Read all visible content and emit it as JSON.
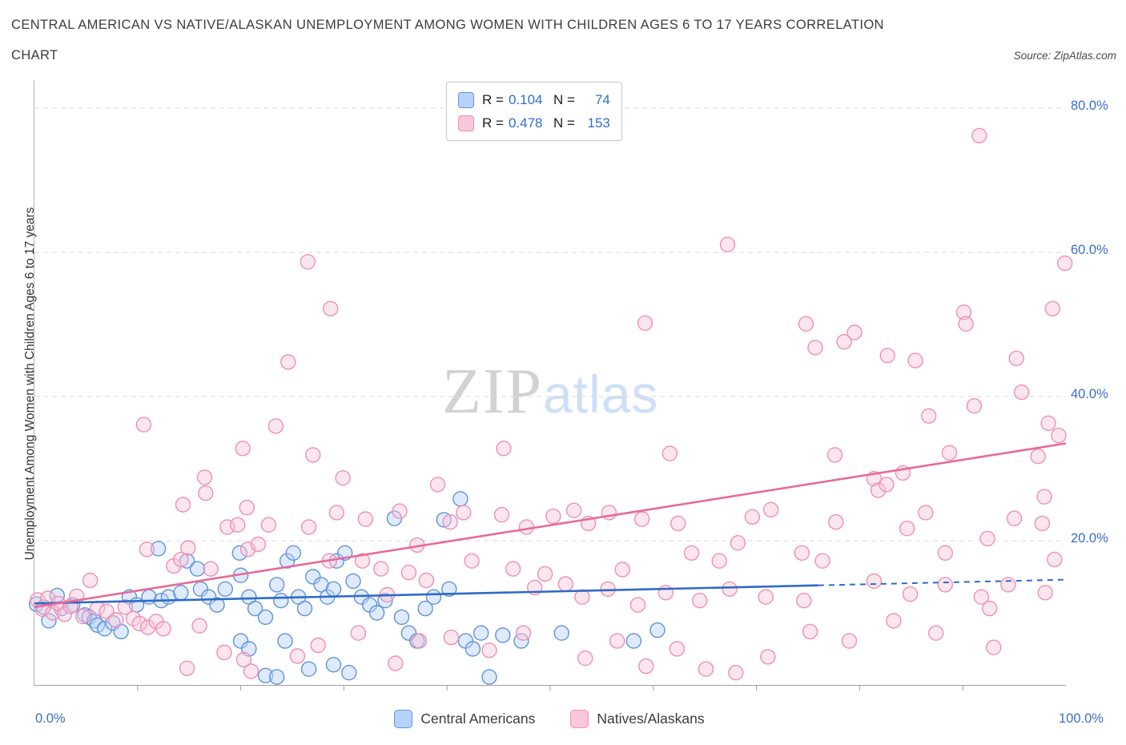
{
  "header": {
    "title_line1": "CENTRAL AMERICAN VS NATIVE/ALASKAN UNEMPLOYMENT AMONG WOMEN WITH CHILDREN AGES 6 TO 17 YEARS CORRELATION",
    "title_line2": "CHART",
    "source": "Source: ZipAtlas.com"
  },
  "legend_box": {
    "series": [
      {
        "r_label": "R =",
        "r": "0.104",
        "n_label": "N =",
        "n": "74"
      },
      {
        "r_label": "R =",
        "r": "0.478",
        "n_label": "N =",
        "n": "153"
      }
    ]
  },
  "watermark": {
    "part1": "ZIP",
    "part2": "atlas"
  },
  "axes": {
    "y_label": "Unemployment Among Women with Children Ages 6 to 17 years",
    "y_ticks": [
      "80.0%",
      "60.0%",
      "40.0%",
      "20.0%"
    ],
    "x_min_label": "0.0%",
    "x_max_label": "100.0%"
  },
  "bottom_legend": {
    "series1": "Central Americans",
    "series2": "Natives/Alaskans"
  },
  "colors": {
    "accent_blue": "#2f6fce",
    "tick_label_blue": "#3a6fc9",
    "central_fill": "#b7d3f9",
    "central_stroke": "#5f92dd",
    "central_line": "#2e6bc6",
    "native_fill": "#f9c8da",
    "native_stroke": "#ee8fb5",
    "native_line": "#e76b97",
    "grid": "#d9d9d9",
    "axis": "#9e9e9e"
  },
  "chart_data": {
    "type": "scatter",
    "title": "Central American vs Native/Alaskan Unemployment Among Women with Children Ages 6 to 17 years Correlation",
    "xlabel": "",
    "ylabel": "Unemployment Among Women with Children Ages 6 to 17 years",
    "xlim": [
      0,
      100
    ],
    "ylim": [
      0,
      83.9
    ],
    "y_gridlines": [
      20,
      40,
      60,
      80
    ],
    "x_ticks": [
      10,
      20,
      30,
      40,
      50,
      60,
      70,
      80,
      90
    ],
    "grid": true,
    "legend_position": "bottom",
    "marker_radius": 9,
    "series": [
      {
        "name": "Central Americans",
        "R": 0.104,
        "N": 74,
        "fill": "#b7d3f9",
        "stroke": "#5f92dd",
        "line": "#2e6bc6",
        "point_name": "central-american-point",
        "trend": {
          "x1": 0,
          "y1": 11.3,
          "x2": 100,
          "y2": 14.6,
          "dash_from_x": 76
        },
        "points": [
          [
            0.2,
            11.2
          ],
          [
            0.9,
            10.8
          ],
          [
            1.4,
            8.9
          ],
          [
            2.2,
            12.4
          ],
          [
            2.6,
            10.6
          ],
          [
            3.7,
            11.1
          ],
          [
            4.9,
            9.7
          ],
          [
            5.3,
            9.4
          ],
          [
            5.8,
            8.9
          ],
          [
            6.1,
            8.3
          ],
          [
            6.8,
            7.8
          ],
          [
            7.6,
            8.6
          ],
          [
            8.4,
            7.4
          ],
          [
            9.2,
            12.2
          ],
          [
            9.9,
            11.1
          ],
          [
            11.1,
            12.2
          ],
          [
            12.0,
            18.9
          ],
          [
            12.3,
            11.7
          ],
          [
            13.0,
            12.2
          ],
          [
            14.2,
            12.8
          ],
          [
            14.8,
            17.2
          ],
          [
            15.8,
            16.1
          ],
          [
            16.1,
            13.3
          ],
          [
            16.9,
            12.2
          ],
          [
            17.7,
            11.1
          ],
          [
            18.5,
            13.3
          ],
          [
            19.9,
            18.3
          ],
          [
            20.0,
            15.2
          ],
          [
            20.0,
            6.1
          ],
          [
            20.8,
            12.2
          ],
          [
            20.8,
            5.0
          ],
          [
            21.4,
            10.6
          ],
          [
            22.4,
            9.4
          ],
          [
            22.4,
            1.3
          ],
          [
            23.5,
            13.9
          ],
          [
            23.5,
            1.1
          ],
          [
            23.9,
            11.7
          ],
          [
            24.3,
            6.1
          ],
          [
            24.5,
            17.2
          ],
          [
            25.1,
            18.3
          ],
          [
            25.6,
            12.2
          ],
          [
            26.2,
            10.6
          ],
          [
            26.6,
            2.2
          ],
          [
            27.0,
            15.0
          ],
          [
            27.8,
            13.9
          ],
          [
            28.4,
            12.2
          ],
          [
            29.0,
            13.3
          ],
          [
            29.0,
            2.8
          ],
          [
            29.3,
            17.2
          ],
          [
            30.1,
            18.3
          ],
          [
            30.5,
            1.7
          ],
          [
            30.9,
            14.4
          ],
          [
            31.7,
            12.2
          ],
          [
            32.5,
            11.1
          ],
          [
            33.2,
            10.0
          ],
          [
            34.0,
            11.7
          ],
          [
            34.9,
            23.1
          ],
          [
            35.6,
            9.4
          ],
          [
            36.3,
            7.2
          ],
          [
            37.1,
            6.1
          ],
          [
            37.9,
            10.6
          ],
          [
            38.7,
            12.2
          ],
          [
            39.7,
            22.9
          ],
          [
            40.2,
            13.3
          ],
          [
            41.3,
            25.8
          ],
          [
            41.8,
            6.1
          ],
          [
            42.5,
            5.0
          ],
          [
            43.3,
            7.2
          ],
          [
            44.1,
            1.1
          ],
          [
            45.4,
            6.9
          ],
          [
            47.2,
            6.1
          ],
          [
            51.1,
            7.2
          ],
          [
            58.1,
            6.1
          ],
          [
            60.4,
            7.6
          ]
        ]
      },
      {
        "name": "Natives/Alaskans",
        "R": 0.478,
        "N": 153,
        "fill": "#f9c8da",
        "stroke": "#ee8fb5",
        "line": "#e76b97",
        "point_name": "native-alaskan-point",
        "trend": {
          "x1": 0,
          "y1": 10.8,
          "x2": 100,
          "y2": 33.5
        },
        "points": [
          [
            0.3,
            11.8
          ],
          [
            0.8,
            10.5
          ],
          [
            1.3,
            12.0
          ],
          [
            1.8,
            10.0
          ],
          [
            2.3,
            11.3
          ],
          [
            2.9,
            9.8
          ],
          [
            3.5,
            10.9
          ],
          [
            4.1,
            12.3
          ],
          [
            4.7,
            9.5
          ],
          [
            5.4,
            14.5
          ],
          [
            6.1,
            10.6
          ],
          [
            7.0,
            10.2
          ],
          [
            7.9,
            9.0
          ],
          [
            8.8,
            10.8
          ],
          [
            9.6,
            9.2
          ],
          [
            10.2,
            8.5
          ],
          [
            11.0,
            8.0
          ],
          [
            11.8,
            8.8
          ],
          [
            10.6,
            36.1
          ],
          [
            10.9,
            18.8
          ],
          [
            12.5,
            7.8
          ],
          [
            13.5,
            16.5
          ],
          [
            14.2,
            17.4
          ],
          [
            14.4,
            25.0
          ],
          [
            14.8,
            2.3
          ],
          [
            14.9,
            19.0
          ],
          [
            16.0,
            8.2
          ],
          [
            16.5,
            28.8
          ],
          [
            16.6,
            26.6
          ],
          [
            17.1,
            16.1
          ],
          [
            18.4,
            4.5
          ],
          [
            18.7,
            21.9
          ],
          [
            19.7,
            22.2
          ],
          [
            20.2,
            32.8
          ],
          [
            20.3,
            3.5
          ],
          [
            20.6,
            24.6
          ],
          [
            20.7,
            18.8
          ],
          [
            21.0,
            1.9
          ],
          [
            21.7,
            19.5
          ],
          [
            22.7,
            22.2
          ],
          [
            23.4,
            35.9
          ],
          [
            24.6,
            44.8
          ],
          [
            25.5,
            4.0
          ],
          [
            26.5,
            58.7
          ],
          [
            26.6,
            21.9
          ],
          [
            27.0,
            31.9
          ],
          [
            27.5,
            5.5
          ],
          [
            28.6,
            17.2
          ],
          [
            28.7,
            52.2
          ],
          [
            29.3,
            23.9
          ],
          [
            29.9,
            28.7
          ],
          [
            31.4,
            7.2
          ],
          [
            31.8,
            17.2
          ],
          [
            32.1,
            23.0
          ],
          [
            33.6,
            16.1
          ],
          [
            34.2,
            12.5
          ],
          [
            35.0,
            3.0
          ],
          [
            35.4,
            24.1
          ],
          [
            36.3,
            15.6
          ],
          [
            37.1,
            19.4
          ],
          [
            37.3,
            6.1
          ],
          [
            38.0,
            14.5
          ],
          [
            39.1,
            27.8
          ],
          [
            40.3,
            22.6
          ],
          [
            40.4,
            6.6
          ],
          [
            41.6,
            23.9
          ],
          [
            42.4,
            17.2
          ],
          [
            44.1,
            4.8
          ],
          [
            45.3,
            23.6
          ],
          [
            45.5,
            32.8
          ],
          [
            46.4,
            16.1
          ],
          [
            47.4,
            7.2
          ],
          [
            47.7,
            21.9
          ],
          [
            48.5,
            13.5
          ],
          [
            49.5,
            15.4
          ],
          [
            50.3,
            23.4
          ],
          [
            51.5,
            14.0
          ],
          [
            52.3,
            24.2
          ],
          [
            53.1,
            12.2
          ],
          [
            53.4,
            3.7
          ],
          [
            53.7,
            22.4
          ],
          [
            55.6,
            13.3
          ],
          [
            55.7,
            23.9
          ],
          [
            56.5,
            6.1
          ],
          [
            57.0,
            16.0
          ],
          [
            58.5,
            11.1
          ],
          [
            58.9,
            23.0
          ],
          [
            59.2,
            50.2
          ],
          [
            59.3,
            2.6
          ],
          [
            61.2,
            12.8
          ],
          [
            61.6,
            32.1
          ],
          [
            62.3,
            5.0
          ],
          [
            62.4,
            22.4
          ],
          [
            63.7,
            18.3
          ],
          [
            64.5,
            11.7
          ],
          [
            65.1,
            2.2
          ],
          [
            66.4,
            17.2
          ],
          [
            67.2,
            61.1
          ],
          [
            67.4,
            13.3
          ],
          [
            68.0,
            1.7
          ],
          [
            68.2,
            19.7
          ],
          [
            69.6,
            23.3
          ],
          [
            70.9,
            12.2
          ],
          [
            71.1,
            3.9
          ],
          [
            71.4,
            24.3
          ],
          [
            74.4,
            18.3
          ],
          [
            74.6,
            11.7
          ],
          [
            74.8,
            50.1
          ],
          [
            75.2,
            7.4
          ],
          [
            75.7,
            46.8
          ],
          [
            76.4,
            17.2
          ],
          [
            77.6,
            31.9
          ],
          [
            77.7,
            22.6
          ],
          [
            79.0,
            6.1
          ],
          [
            78.5,
            47.6
          ],
          [
            79.5,
            48.9
          ],
          [
            81.4,
            28.6
          ],
          [
            81.4,
            14.4
          ],
          [
            81.8,
            27.0
          ],
          [
            82.6,
            27.8
          ],
          [
            82.7,
            45.7
          ],
          [
            83.3,
            8.9
          ],
          [
            84.2,
            29.4
          ],
          [
            84.6,
            21.7
          ],
          [
            84.9,
            12.6
          ],
          [
            85.4,
            45.0
          ],
          [
            86.4,
            23.9
          ],
          [
            86.7,
            37.3
          ],
          [
            87.4,
            7.2
          ],
          [
            88.3,
            18.3
          ],
          [
            88.3,
            13.9
          ],
          [
            88.7,
            32.2
          ],
          [
            90.1,
            51.7
          ],
          [
            90.3,
            50.1
          ],
          [
            91.1,
            38.7
          ],
          [
            91.6,
            76.2
          ],
          [
            91.8,
            12.2
          ],
          [
            92.4,
            20.3
          ],
          [
            92.6,
            10.6
          ],
          [
            93.0,
            5.2
          ],
          [
            94.4,
            13.9
          ],
          [
            95.0,
            23.1
          ],
          [
            95.2,
            45.3
          ],
          [
            95.7,
            40.6
          ],
          [
            97.3,
            31.7
          ],
          [
            97.7,
            22.4
          ],
          [
            97.9,
            26.1
          ],
          [
            98.0,
            12.8
          ],
          [
            98.3,
            36.3
          ],
          [
            98.7,
            52.2
          ],
          [
            98.9,
            17.4
          ],
          [
            99.3,
            34.6
          ],
          [
            99.9,
            58.5
          ]
        ]
      }
    ]
  }
}
